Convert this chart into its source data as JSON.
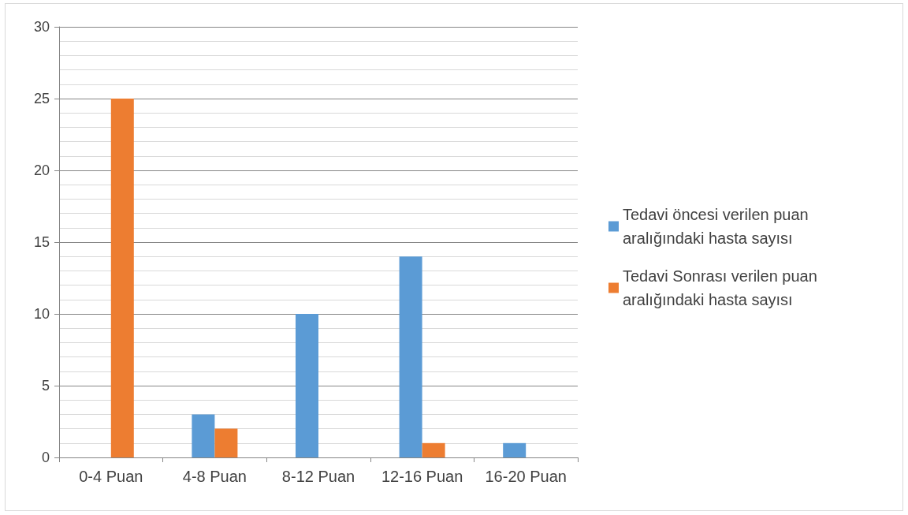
{
  "chart_data": {
    "type": "bar",
    "categories": [
      "0-4 Puan",
      "4-8 Puan",
      "8-12 Puan",
      "12-16 Puan",
      "16-20 Puan"
    ],
    "series": [
      {
        "name": "Tedavi öncesi verilen puan aralığındaki hasta sayısı",
        "color": "#5b9bd5",
        "values": [
          0,
          3,
          10,
          14,
          1
        ]
      },
      {
        "name": "Tedavi Sonrası verilen puan aralığındaki hasta sayısı",
        "color": "#ed7d31",
        "values": [
          25,
          2,
          0,
          1,
          0
        ]
      }
    ],
    "ylim": [
      0,
      30
    ],
    "yticks": [
      0,
      5,
      10,
      15,
      20,
      25,
      30
    ],
    "grid": "y",
    "legend": "right"
  }
}
